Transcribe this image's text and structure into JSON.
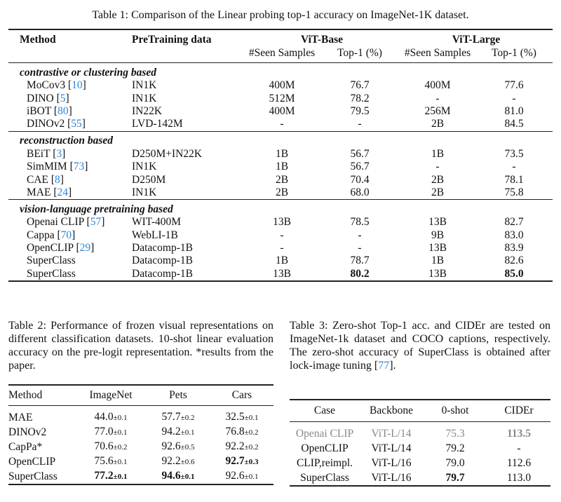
{
  "table1": {
    "caption": "Table 1: Comparison of the Linear probing top-1 accuracy on ImageNet-1K dataset.",
    "headers": {
      "method": "Method",
      "pretraining": "PreTraining data",
      "vit_base": "ViT-Base",
      "vit_large": "ViT-Large",
      "seen": "#Seen Samples",
      "top1": "Top-1 (%)"
    },
    "groups": [
      {
        "title": "contrastive or clustering based",
        "rows": [
          {
            "method": "MoCov3",
            "ref": "10",
            "data": "IN1K",
            "cells": [
              "400M",
              "76.7",
              "400M",
              "77.6"
            ],
            "bold": []
          },
          {
            "method": "DINO",
            "ref": "5",
            "data": "IN1K",
            "cells": [
              "512M",
              "78.2",
              "-",
              "-"
            ],
            "bold": []
          },
          {
            "method": "iBOT",
            "ref": "80",
            "data": "IN22K",
            "cells": [
              "400M",
              "79.5",
              "256M",
              "81.0"
            ],
            "bold": []
          },
          {
            "method": "DINOv2",
            "ref": "55",
            "data": "LVD-142M",
            "cells": [
              "-",
              "-",
              "2B",
              "84.5"
            ],
            "bold": []
          }
        ]
      },
      {
        "title": "reconstruction based",
        "rows": [
          {
            "method": "BEiT",
            "ref": "3",
            "data": "D250M+IN22K",
            "cells": [
              "1B",
              "56.7",
              "1B",
              "73.5"
            ],
            "bold": []
          },
          {
            "method": "SimMIM",
            "ref": "73",
            "data": "IN1K",
            "cells": [
              "1B",
              "56.7",
              "-",
              "-"
            ],
            "bold": []
          },
          {
            "method": "CAE",
            "ref": "8",
            "data": "D250M",
            "cells": [
              "2B",
              "70.4",
              "2B",
              "78.1"
            ],
            "bold": []
          },
          {
            "method": "MAE",
            "ref": "24",
            "data": "IN1K",
            "cells": [
              "2B",
              "68.0",
              "2B",
              "75.8"
            ],
            "bold": []
          }
        ]
      },
      {
        "title": "vision-language pretraining based",
        "rows": [
          {
            "method": "Openai CLIP",
            "ref": "57",
            "data": "WIT-400M",
            "cells": [
              "13B",
              "78.5",
              "13B",
              "82.7"
            ],
            "bold": []
          },
          {
            "method": "Cappa",
            "ref": "70",
            "data": "WebLI-1B",
            "cells": [
              "-",
              "-",
              "9B",
              "83.0"
            ],
            "bold": []
          },
          {
            "method": "OpenCLIP",
            "ref": "29",
            "data": "Datacomp-1B",
            "cells": [
              "-",
              "-",
              "13B",
              "83.9"
            ],
            "bold": []
          },
          {
            "method": "SuperClass",
            "ref": "",
            "data": "Datacomp-1B",
            "cells": [
              "1B",
              "78.7",
              "1B",
              "82.6"
            ],
            "bold": []
          },
          {
            "method": "SuperClass",
            "ref": "",
            "data": "Datacomp-1B",
            "cells": [
              "13B",
              "80.2",
              "13B",
              "85.0"
            ],
            "bold": [
              1,
              3
            ]
          }
        ]
      }
    ]
  },
  "table2": {
    "caption": "Table 2:  Performance of frozen visual representations on different classification datasets.  10-shot linear evaluation accuracy on the pre-logit representation. *results from the paper.",
    "headers": [
      "Method",
      "ImageNet",
      "Pets",
      "Cars"
    ],
    "rows": [
      {
        "method": "MAE",
        "cells": [
          [
            "44.0",
            "0.1"
          ],
          [
            "57.7",
            "0.2"
          ],
          [
            "32.5",
            "0.1"
          ]
        ],
        "bold": []
      },
      {
        "method": "DINOv2",
        "cells": [
          [
            "77.0",
            "0.1"
          ],
          [
            "94.2",
            "0.1"
          ],
          [
            "76.8",
            "0.2"
          ]
        ],
        "bold": []
      },
      {
        "method": "CapPa*",
        "cells": [
          [
            "70.6",
            "0.2"
          ],
          [
            "92.6",
            "0.5"
          ],
          [
            "92.2",
            "0.2"
          ]
        ],
        "bold": []
      },
      {
        "method": "OpenCLIP",
        "cells": [
          [
            "75.6",
            "0.1"
          ],
          [
            "92.2",
            "0.6"
          ],
          [
            "92.7",
            "0.3"
          ]
        ],
        "bold": [
          2
        ]
      },
      {
        "method": "SuperClass",
        "cells": [
          [
            "77.2",
            "0.1"
          ],
          [
            "94.6",
            "0.1"
          ],
          [
            "92.6",
            "0.1"
          ]
        ],
        "bold": [
          0,
          1
        ]
      }
    ]
  },
  "table3": {
    "caption": "Table 3:  Zero-shot Top-1 acc.  and CIDEr are tested on ImageNet-1k dataset and COCO captions, respectively. The zero-shot accuracy of SuperClass is obtained after lock-image tuning",
    "caption_ref": "77",
    "headers": [
      "Case",
      "Backbone",
      "0-shot",
      "CIDEr"
    ],
    "rows": [
      {
        "cells": [
          "Openai CLIP",
          "ViT-L/14",
          "75.3",
          "113.5"
        ],
        "bold": [
          3
        ],
        "gray": true
      },
      {
        "cells": [
          "OpenCLIP",
          "ViT-L/14",
          "79.2",
          "-"
        ],
        "bold": [],
        "gray": false
      },
      {
        "cells": [
          "CLIP,reimpl.",
          "ViT-L/16",
          "79.0",
          "112.6"
        ],
        "bold": [],
        "gray": false
      },
      {
        "cells": [
          "SuperClass",
          "ViT-L/16",
          "79.7",
          "113.0"
        ],
        "bold": [
          2
        ],
        "gray": false
      }
    ]
  },
  "colors": {
    "citation": "#2b86d9",
    "gray_row": "#888888"
  }
}
